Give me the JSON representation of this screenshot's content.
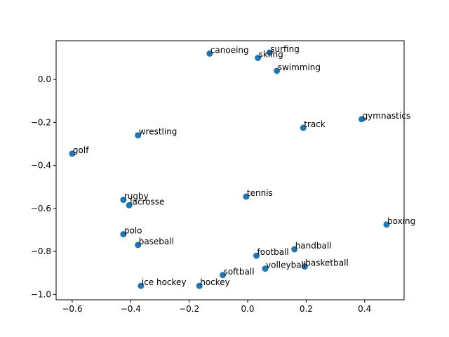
{
  "chart_data": {
    "type": "scatter",
    "title": "",
    "xlabel": "",
    "ylabel": "",
    "xlim": [
      -0.655,
      0.535
    ],
    "ylim": [
      -1.025,
      0.18
    ],
    "xticks": [
      -0.6,
      -0.4,
      -0.2,
      0.0,
      0.2,
      0.4
    ],
    "xtick_labels": [
      "−0.6",
      "−0.4",
      "−0.2",
      "0.0",
      "0.2",
      "0.4"
    ],
    "yticks": [
      0.0,
      -0.2,
      -0.4,
      -0.6,
      -0.8,
      -1.0
    ],
    "ytick_labels": [
      "0.0",
      "−0.2",
      "−0.4",
      "−0.6",
      "−0.8",
      "−1.0"
    ],
    "grid": false,
    "marker_color": "#1f77b4",
    "points": [
      {
        "label": "surfing",
        "x": 0.075,
        "y": 0.125
      },
      {
        "label": "canoeing",
        "x": -0.13,
        "y": 0.12
      },
      {
        "label": "skiing",
        "x": 0.035,
        "y": 0.1
      },
      {
        "label": "swimming",
        "x": 0.1,
        "y": 0.04
      },
      {
        "label": "gymnastics",
        "x": 0.39,
        "y": -0.185
      },
      {
        "label": "track",
        "x": 0.19,
        "y": -0.225
      },
      {
        "label": "wrestling",
        "x": -0.375,
        "y": -0.26
      },
      {
        "label": "golf",
        "x": -0.6,
        "y": -0.345
      },
      {
        "label": "tennis",
        "x": -0.005,
        "y": -0.545
      },
      {
        "label": "rugby",
        "x": -0.425,
        "y": -0.56
      },
      {
        "label": "lacrosse",
        "x": -0.405,
        "y": -0.585
      },
      {
        "label": "boxing",
        "x": 0.475,
        "y": -0.675
      },
      {
        "label": "polo",
        "x": -0.425,
        "y": -0.72
      },
      {
        "label": "baseball",
        "x": -0.375,
        "y": -0.77
      },
      {
        "label": "handball",
        "x": 0.16,
        "y": -0.79
      },
      {
        "label": "football",
        "x": 0.03,
        "y": -0.82
      },
      {
        "label": "basketball",
        "x": 0.195,
        "y": -0.87
      },
      {
        "label": "volleyball",
        "x": 0.06,
        "y": -0.88
      },
      {
        "label": "softball",
        "x": -0.085,
        "y": -0.91
      },
      {
        "label": "ice hockey",
        "x": -0.365,
        "y": -0.96
      },
      {
        "label": "hockey",
        "x": -0.165,
        "y": -0.96
      }
    ]
  }
}
